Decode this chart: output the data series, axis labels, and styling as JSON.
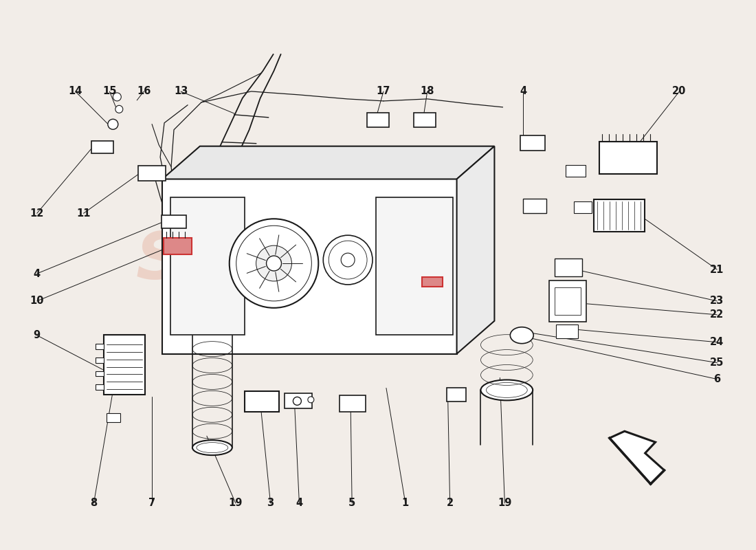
{
  "bg_color": "#f2ede8",
  "line_color": "#1a1a1a",
  "red_color": "#cc3333",
  "watermark_color": "#e8b8a8",
  "callouts": [
    [
      "8",
      135,
      67,
      162,
      225
    ],
    [
      "7",
      220,
      67,
      220,
      222
    ],
    [
      "19",
      342,
      67,
      300,
      165
    ],
    [
      "3",
      393,
      67,
      378,
      215
    ],
    [
      "4",
      435,
      67,
      428,
      215
    ],
    [
      "5",
      512,
      67,
      510,
      210
    ],
    [
      "1",
      590,
      67,
      562,
      235
    ],
    [
      "2",
      655,
      67,
      652,
      220
    ],
    [
      "19",
      735,
      67,
      728,
      250
    ],
    [
      "6",
      1045,
      248,
      772,
      308
    ],
    [
      "25",
      1045,
      272,
      776,
      315
    ],
    [
      "24",
      1045,
      302,
      822,
      322
    ],
    [
      "22",
      1045,
      342,
      855,
      358
    ],
    [
      "23",
      1045,
      362,
      843,
      407
    ],
    [
      "21",
      1045,
      408,
      938,
      483
    ],
    [
      "9",
      52,
      312,
      148,
      262
    ],
    [
      "10",
      52,
      362,
      238,
      438
    ],
    [
      "4",
      52,
      402,
      235,
      477
    ],
    [
      "12",
      52,
      490,
      132,
      585
    ],
    [
      "11",
      120,
      490,
      200,
      547
    ],
    [
      "14",
      108,
      668,
      160,
      616
    ],
    [
      "15",
      158,
      668,
      170,
      638
    ],
    [
      "16",
      208,
      668,
      198,
      655
    ],
    [
      "13",
      262,
      668,
      342,
      635
    ],
    [
      "17",
      558,
      668,
      545,
      622
    ],
    [
      "18",
      622,
      668,
      615,
      622
    ],
    [
      "4",
      762,
      668,
      762,
      600
    ],
    [
      "20",
      990,
      668,
      915,
      572
    ]
  ]
}
